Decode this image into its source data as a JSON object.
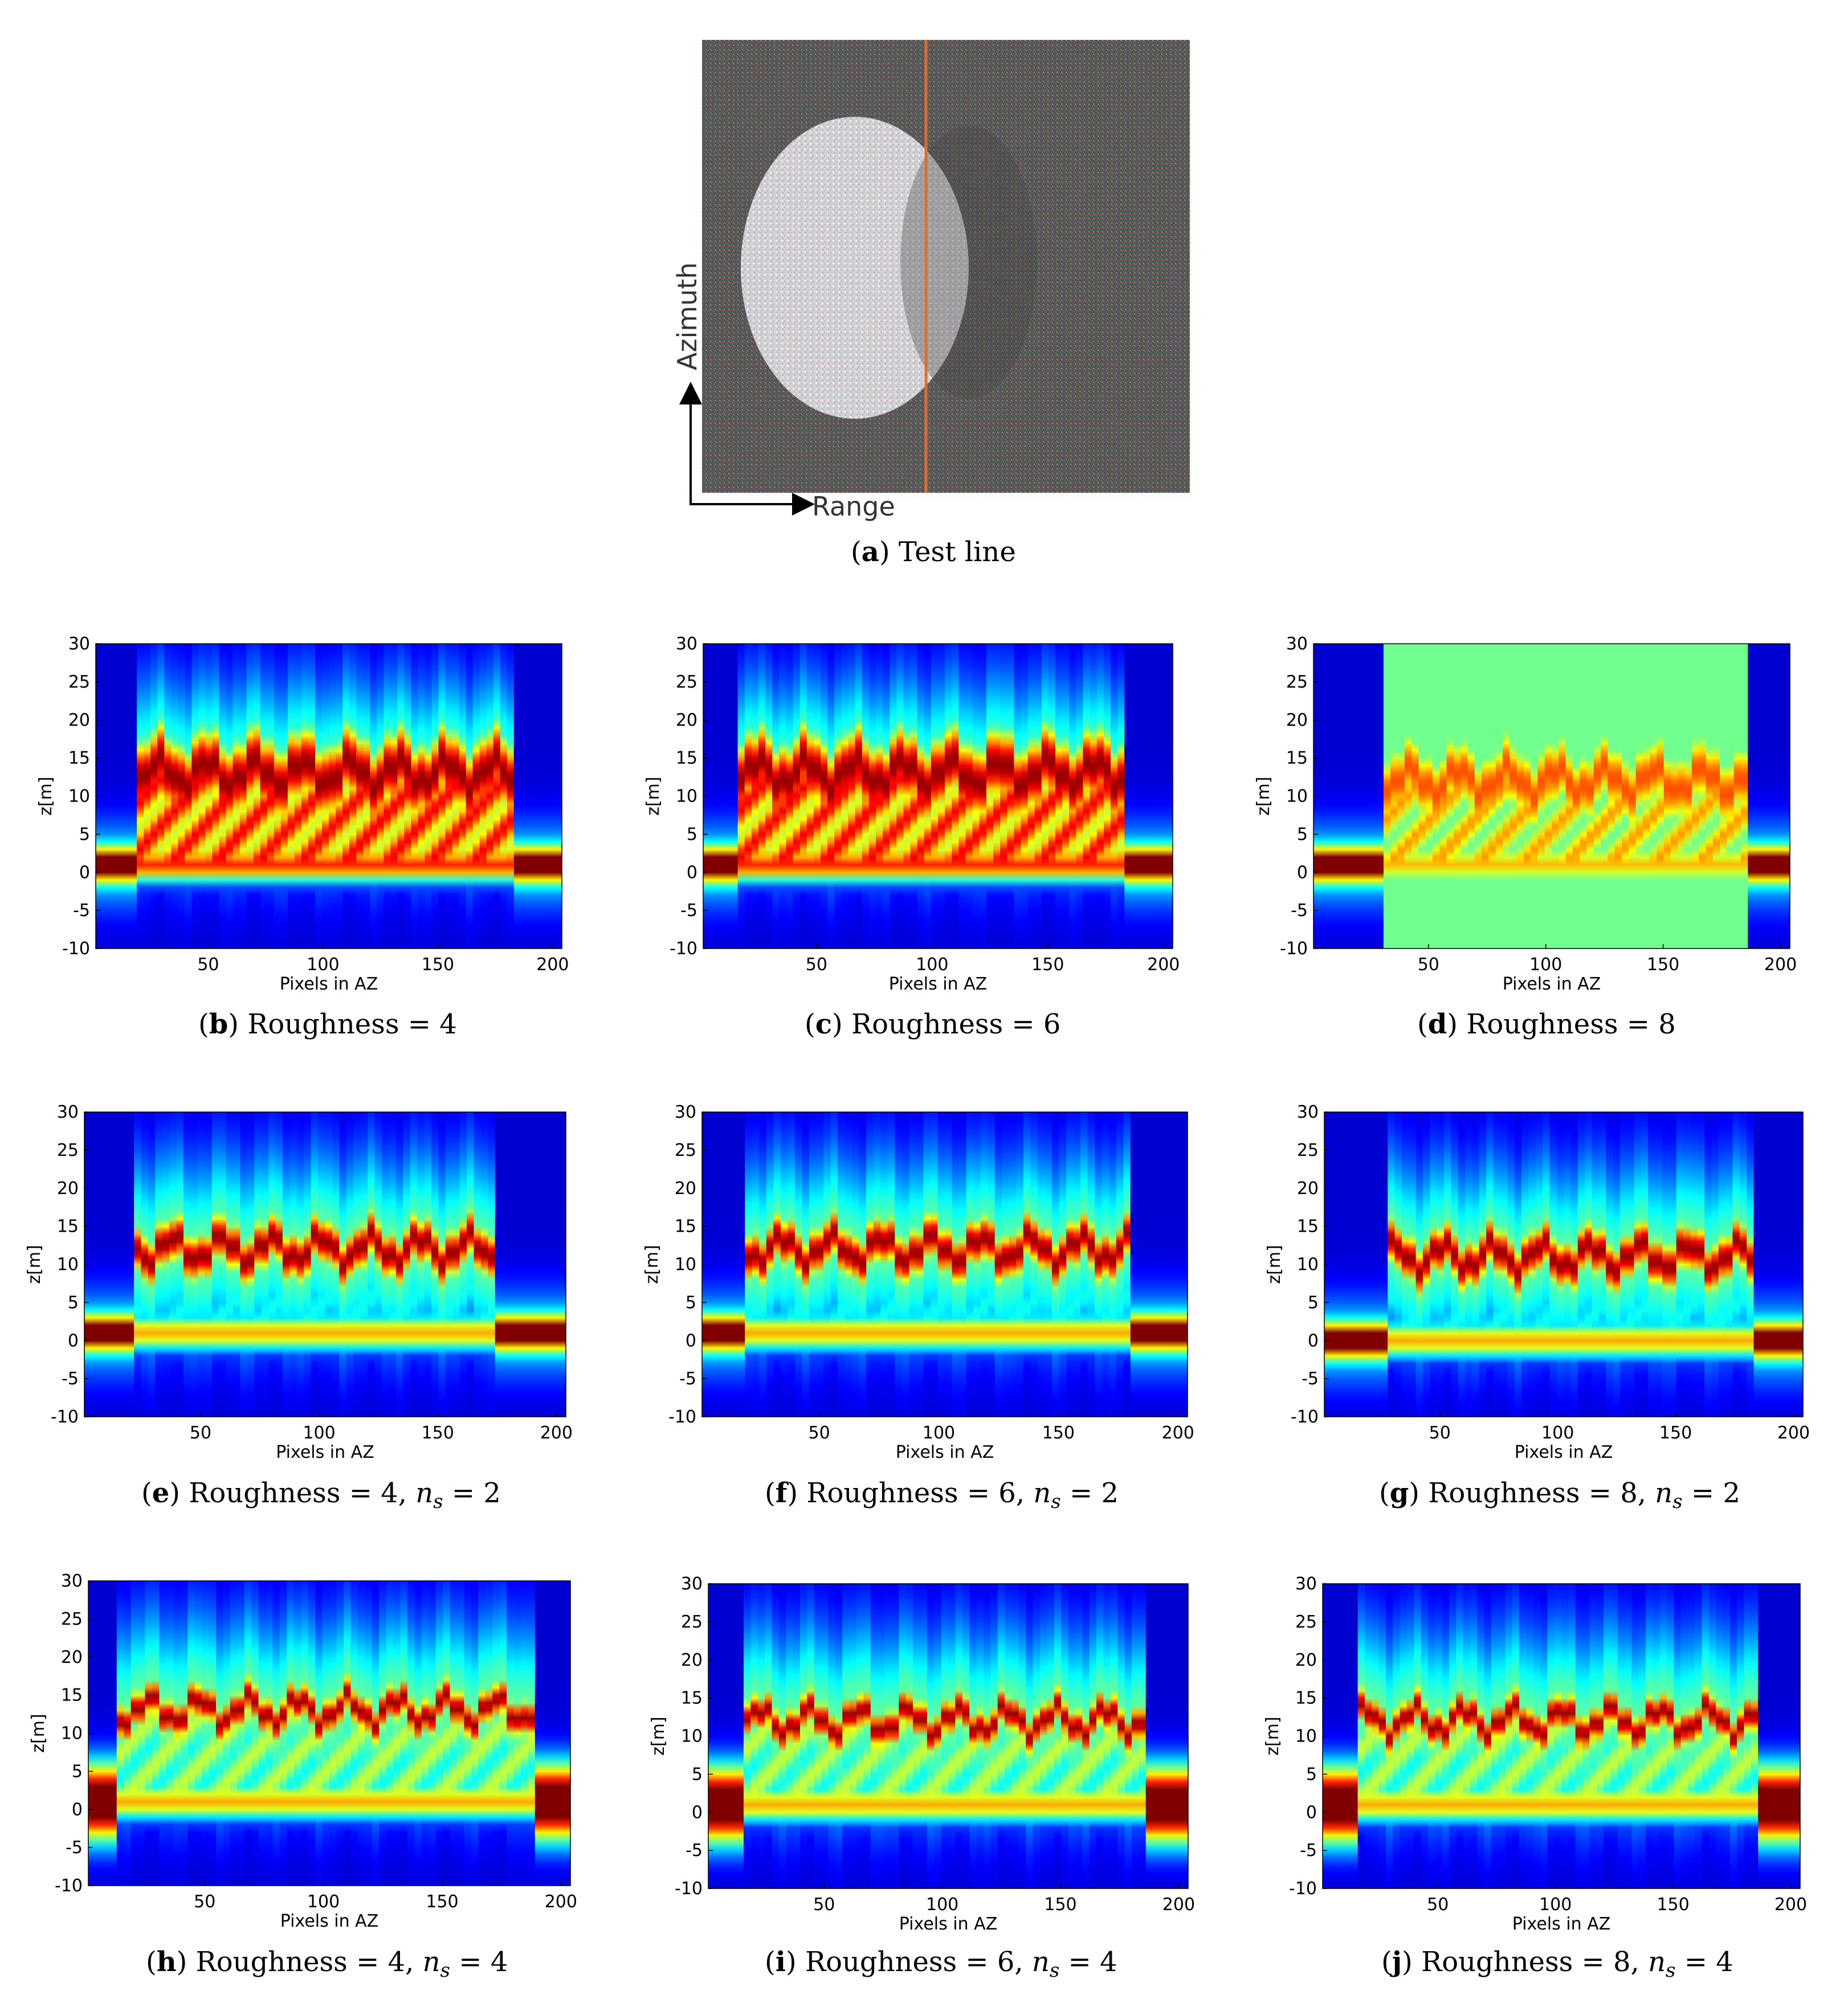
{
  "figure": {
    "panel_a": {
      "caption_letter": "a",
      "caption_text": "Test line",
      "y_arrow_label": "Azimuth",
      "x_arrow_label": "Range",
      "test_line_color": "#e8692a"
    },
    "colormap": "jet",
    "panels": [
      {
        "letter": "b",
        "caption": "Roughness = 4",
        "ns": ""
      },
      {
        "letter": "c",
        "caption": "Roughness = 6",
        "ns": ""
      },
      {
        "letter": "d",
        "caption": "Roughness = 8",
        "ns": ""
      },
      {
        "letter": "e",
        "caption": "Roughness = 4,",
        "ns": "2"
      },
      {
        "letter": "f",
        "caption": "Roughness = 6,",
        "ns": "2"
      },
      {
        "letter": "g",
        "caption": "Roughness = 8,",
        "ns": "2"
      },
      {
        "letter": "h",
        "caption": "Roughness = 4,",
        "ns": "4"
      },
      {
        "letter": "i",
        "caption": "Roughness = 6,",
        "ns": "4"
      },
      {
        "letter": "j",
        "caption": "Roughness = 8,",
        "ns": "4"
      }
    ]
  },
  "chart_data": [
    {
      "panel": "b",
      "type": "heatmap",
      "xlabel": "Pixels in AZ",
      "ylabel": "z[m]",
      "xticks": [
        50,
        100,
        150,
        200
      ],
      "yticks": [
        30,
        25,
        20,
        15,
        10,
        5,
        0,
        -5,
        -10
      ],
      "xlim": [
        1,
        204
      ],
      "ylim": [
        -10,
        30
      ],
      "canopy_az": [
        18,
        183
      ],
      "canopy_top": 13,
      "ground_z": 1,
      "ns": 0,
      "roughness": 4
    },
    {
      "panel": "c",
      "type": "heatmap",
      "xlabel": "Pixels in AZ",
      "ylabel": "z[m]",
      "xticks": [
        50,
        100,
        150,
        200
      ],
      "yticks": [
        30,
        25,
        20,
        15,
        10,
        5,
        0,
        -5,
        -10
      ],
      "xlim": [
        1,
        204
      ],
      "ylim": [
        -10,
        30
      ],
      "canopy_az": [
        16,
        183
      ],
      "canopy_top": 13,
      "ground_z": 1,
      "ns": 0,
      "roughness": 6
    },
    {
      "panel": "d",
      "type": "heatmap",
      "xlabel": "Pixels in AZ",
      "ylabel": "z[m]",
      "xticks": [
        50,
        100,
        150,
        200
      ],
      "yticks": [
        30,
        25,
        20,
        15,
        10,
        5,
        0,
        -5,
        -10
      ],
      "xlim": [
        1,
        204
      ],
      "ylim": [
        -10,
        30
      ],
      "canopy_az": [
        30,
        185
      ],
      "canopy_top": 12,
      "ground_z": 1,
      "ns": 0,
      "roughness": 8
    },
    {
      "panel": "e",
      "type": "heatmap",
      "xlabel": "Pixels in AZ",
      "ylabel": "z[m]",
      "xticks": [
        50,
        100,
        150,
        200
      ],
      "yticks": [
        30,
        25,
        20,
        15,
        10,
        5,
        0,
        -5,
        -10
      ],
      "xlim": [
        1,
        204
      ],
      "ylim": [
        -10,
        30
      ],
      "canopy_az": [
        22,
        175
      ],
      "canopy_top": 12,
      "ground_z": 1,
      "ns": 2,
      "roughness": 4
    },
    {
      "panel": "f",
      "type": "heatmap",
      "xlabel": "Pixels in AZ",
      "ylabel": "z[m]",
      "xticks": [
        50,
        100,
        150,
        200
      ],
      "yticks": [
        30,
        25,
        20,
        15,
        10,
        5,
        0,
        -5,
        -10
      ],
      "xlim": [
        1,
        204
      ],
      "ylim": [
        -10,
        30
      ],
      "canopy_az": [
        20,
        180
      ],
      "canopy_top": 12,
      "ground_z": 1,
      "ns": 2,
      "roughness": 6
    },
    {
      "panel": "g",
      "type": "heatmap",
      "xlabel": "Pixels in AZ",
      "ylabel": "z[m]",
      "xticks": [
        50,
        100,
        150,
        200
      ],
      "yticks": [
        30,
        25,
        20,
        15,
        10,
        5,
        0,
        -5,
        -10
      ],
      "xlim": [
        1,
        204
      ],
      "ylim": [
        -10,
        30
      ],
      "canopy_az": [
        28,
        183
      ],
      "canopy_top": 11,
      "ground_z": 0,
      "ns": 2,
      "roughness": 8
    },
    {
      "panel": "h",
      "type": "heatmap",
      "xlabel": "Pixels in AZ",
      "ylabel": "z[m]",
      "xticks": [
        50,
        100,
        150,
        200
      ],
      "yticks": [
        30,
        25,
        20,
        15,
        10,
        5,
        0,
        -5,
        -10
      ],
      "xlim": [
        1,
        204
      ],
      "ylim": [
        -10,
        30
      ],
      "canopy_az": [
        12,
        188
      ],
      "canopy_top": 13,
      "ground_z": 1,
      "ns": 4,
      "roughness": 4
    },
    {
      "panel": "i",
      "type": "heatmap",
      "xlabel": "Pixels in AZ",
      "ylabel": "z[m]",
      "xticks": [
        50,
        100,
        150,
        200
      ],
      "yticks": [
        30,
        25,
        20,
        15,
        10,
        5,
        0,
        -5,
        -10
      ],
      "xlim": [
        1,
        204
      ],
      "ylim": [
        -10,
        30
      ],
      "canopy_az": [
        16,
        185
      ],
      "canopy_top": 12,
      "ground_z": 1,
      "ns": 4,
      "roughness": 6
    },
    {
      "panel": "j",
      "type": "heatmap",
      "xlabel": "Pixels in AZ",
      "ylabel": "z[m]",
      "xticks": [
        50,
        100,
        150,
        200
      ],
      "yticks": [
        30,
        25,
        20,
        15,
        10,
        5,
        0,
        -5,
        -10
      ],
      "xlim": [
        1,
        204
      ],
      "ylim": [
        -10,
        30
      ],
      "canopy_az": [
        16,
        185
      ],
      "canopy_top": 12,
      "ground_z": 1,
      "ns": 4,
      "roughness": 8
    }
  ]
}
